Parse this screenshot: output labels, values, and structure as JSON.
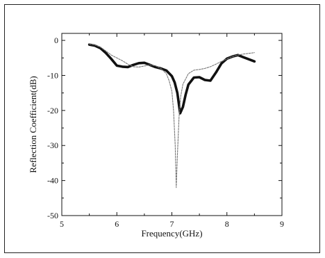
{
  "chart_data": {
    "type": "line",
    "title": "",
    "xlabel": "Frequency(GHz)",
    "ylabel": "Reflection Coefficient(dB)",
    "xlim": [
      5,
      9
    ],
    "ylim": [
      -50,
      2
    ],
    "xticks": [
      "5",
      "6",
      "7",
      "8",
      "9"
    ],
    "yticks": [
      "0",
      "-10",
      "-20",
      "-30",
      "-40",
      "-50"
    ],
    "grid": false,
    "legend": "none",
    "series": [
      {
        "style": "solid-thick",
        "color": "#111111",
        "x": [
          5.5,
          5.6,
          5.7,
          5.8,
          5.9,
          6.0,
          6.1,
          6.2,
          6.3,
          6.4,
          6.5,
          6.6,
          6.7,
          6.8,
          6.9,
          7.0,
          7.05,
          7.1,
          7.15,
          7.2,
          7.25,
          7.3,
          7.4,
          7.5,
          7.6,
          7.7,
          7.8,
          7.9,
          8.0,
          8.1,
          8.2,
          8.3,
          8.4,
          8.5
        ],
        "y": [
          -1.2,
          -1.5,
          -2.2,
          -3.6,
          -5.3,
          -7.2,
          -7.5,
          -7.6,
          -7.0,
          -6.5,
          -6.4,
          -7.0,
          -7.6,
          -8.0,
          -8.6,
          -10.2,
          -12.0,
          -15.0,
          -20.8,
          -19.0,
          -15.5,
          -12.6,
          -10.6,
          -10.5,
          -11.3,
          -11.5,
          -9.2,
          -6.6,
          -5.2,
          -4.6,
          -4.2,
          -4.8,
          -5.4,
          -6.0
        ]
      },
      {
        "style": "dashed-thin",
        "color": "#777777",
        "x": [
          5.5,
          5.6,
          5.7,
          5.8,
          5.9,
          6.0,
          6.1,
          6.2,
          6.3,
          6.4,
          6.5,
          6.6,
          6.7,
          6.8,
          6.9,
          6.95,
          7.0,
          7.03,
          7.06,
          7.08,
          7.1,
          7.13,
          7.16,
          7.2,
          7.3,
          7.4,
          7.5,
          7.6,
          7.7,
          7.8,
          7.9,
          8.0,
          8.1,
          8.2,
          8.3,
          8.4,
          8.5
        ],
        "y": [
          -1.0,
          -1.3,
          -1.9,
          -3.0,
          -4.2,
          -5.0,
          -5.8,
          -6.8,
          -7.5,
          -7.6,
          -7.3,
          -7.0,
          -7.2,
          -8.0,
          -9.5,
          -11.5,
          -14.5,
          -20.0,
          -30.0,
          -42.0,
          -33.0,
          -22.0,
          -16.0,
          -12.5,
          -9.5,
          -8.5,
          -8.3,
          -8.0,
          -7.5,
          -6.8,
          -6.0,
          -5.3,
          -4.6,
          -4.2,
          -3.9,
          -3.7,
          -3.5
        ]
      }
    ]
  }
}
